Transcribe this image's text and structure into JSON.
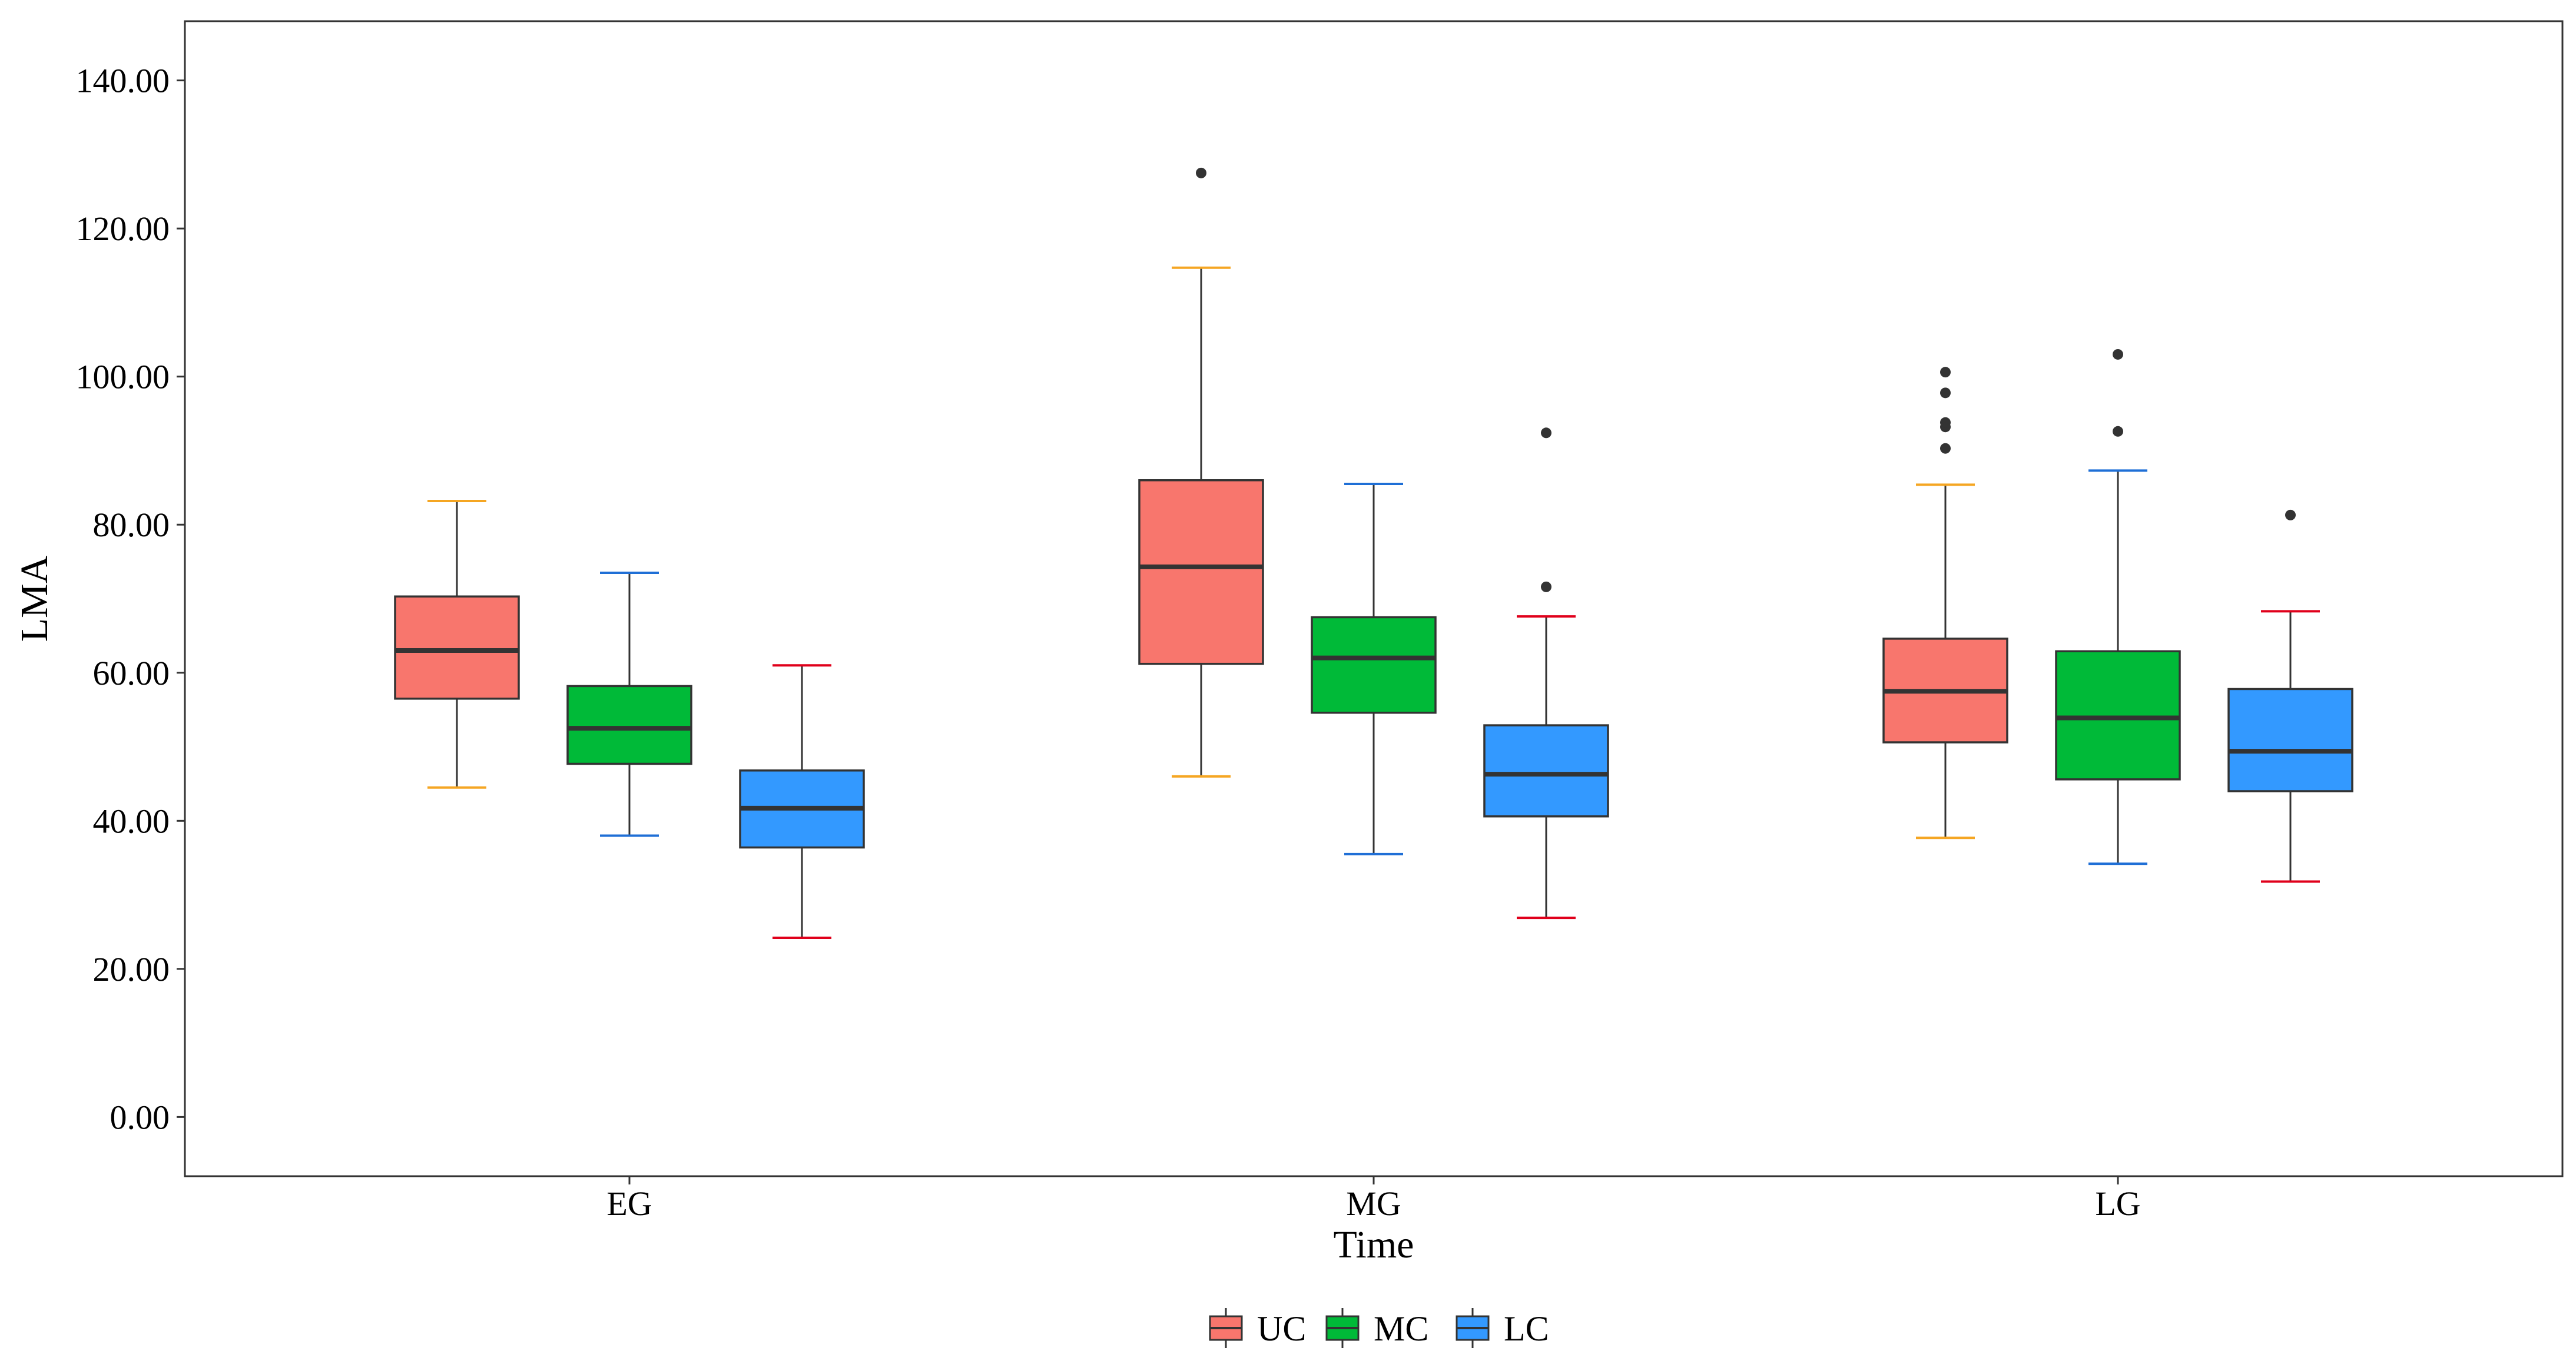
{
  "chart_data": {
    "type": "boxplot",
    "title": "",
    "xlabel": "Time",
    "ylabel": "LMA",
    "ylim": [
      -8,
      148
    ],
    "y_ticks": [
      0,
      20,
      40,
      60,
      80,
      100,
      120,
      140
    ],
    "y_tick_labels": [
      "0.00",
      "20.00",
      "40.00",
      "60.00",
      "80.00",
      "100.00",
      "120.00",
      "140.00"
    ],
    "categories": [
      "EG",
      "MG",
      "LG"
    ],
    "legend_position": "bottom",
    "grid": false,
    "series": [
      {
        "name": "UC",
        "fill": "#F8766D",
        "boxes": [
          {
            "category": "EG",
            "lower_whisker": 44.5,
            "q1": 56.5,
            "median": 63.0,
            "q3": 70.3,
            "upper_whisker": 83.2,
            "whisker_color": "#F5A623",
            "outliers": []
          },
          {
            "category": "MG",
            "lower_whisker": 46.0,
            "q1": 61.2,
            "median": 74.3,
            "q3": 86.0,
            "upper_whisker": 114.7,
            "whisker_color": "#F5A623",
            "outliers": [
              127.5
            ]
          },
          {
            "category": "LG",
            "lower_whisker": 37.7,
            "q1": 50.6,
            "median": 57.5,
            "q3": 64.6,
            "upper_whisker": 85.4,
            "whisker_color": "#F5A623",
            "outliers": [
              90.3,
              93.2,
              93.8,
              97.8,
              100.6
            ]
          }
        ]
      },
      {
        "name": "MC",
        "fill": "#00BA38",
        "boxes": [
          {
            "category": "EG",
            "lower_whisker": 38.0,
            "q1": 47.7,
            "median": 52.5,
            "q3": 58.2,
            "upper_whisker": 73.5,
            "whisker_color": "#1F6FD6",
            "outliers": []
          },
          {
            "category": "MG",
            "lower_whisker": 35.5,
            "q1": 54.6,
            "median": 62.0,
            "q3": 67.5,
            "upper_whisker": 85.5,
            "whisker_color": "#1F6FD6",
            "outliers": []
          },
          {
            "category": "LG",
            "lower_whisker": 34.2,
            "q1": 45.6,
            "median": 53.9,
            "q3": 62.9,
            "upper_whisker": 87.3,
            "whisker_color": "#1F6FD6",
            "outliers": [
              92.6,
              103.0
            ]
          }
        ]
      },
      {
        "name": "LC",
        "fill": "#3399FF",
        "boxes": [
          {
            "category": "EG",
            "lower_whisker": 24.2,
            "q1": 36.4,
            "median": 41.7,
            "q3": 46.8,
            "upper_whisker": 61.0,
            "whisker_color": "#E0001B",
            "outliers": []
          },
          {
            "category": "MG",
            "lower_whisker": 26.9,
            "q1": 40.6,
            "median": 46.3,
            "q3": 52.9,
            "upper_whisker": 67.6,
            "whisker_color": "#E0001B",
            "outliers": [
              71.6,
              92.4
            ]
          },
          {
            "category": "LG",
            "lower_whisker": 31.8,
            "q1": 44.0,
            "median": 49.4,
            "q3": 57.8,
            "upper_whisker": 68.3,
            "whisker_color": "#E0001B",
            "outliers": [
              81.3
            ]
          }
        ]
      }
    ]
  }
}
